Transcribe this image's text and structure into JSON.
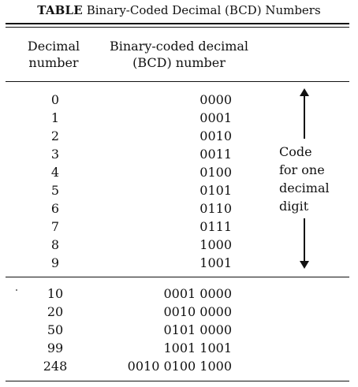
{
  "caption": {
    "label": "TABLE",
    "title": "Binary-Coded Decimal (BCD) Numbers"
  },
  "headers": {
    "decimal": [
      "Decimal",
      "number"
    ],
    "bcd": [
      "Binary-coded decimal",
      "(BCD) number"
    ]
  },
  "digits": [
    {
      "decimal": "0",
      "bcd": "0000"
    },
    {
      "decimal": "1",
      "bcd": "0001"
    },
    {
      "decimal": "2",
      "bcd": "0010"
    },
    {
      "decimal": "3",
      "bcd": "0011"
    },
    {
      "decimal": "4",
      "bcd": "0100"
    },
    {
      "decimal": "5",
      "bcd": "0101"
    },
    {
      "decimal": "6",
      "bcd": "0110"
    },
    {
      "decimal": "7",
      "bcd": "0111"
    },
    {
      "decimal": "8",
      "bcd": "1000"
    },
    {
      "decimal": "9",
      "bcd": "1001"
    }
  ],
  "numbers": [
    {
      "decimal": "10",
      "bcd": "0001 0000"
    },
    {
      "decimal": "20",
      "bcd": "0010 0000"
    },
    {
      "decimal": "50",
      "bcd": "0101 0000"
    },
    {
      "decimal": "99",
      "bcd": "1001 1001"
    },
    {
      "decimal": "248",
      "bcd": "0010 0100 1000"
    }
  ],
  "annotation": {
    "lines": [
      "Code",
      "for one",
      "decimal",
      "digit"
    ]
  }
}
